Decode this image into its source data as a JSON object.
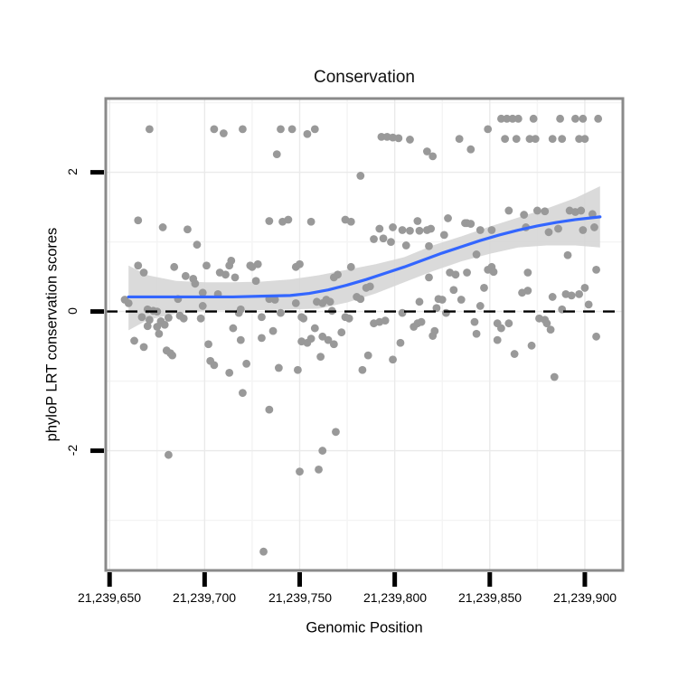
{
  "title": "Conservation",
  "colors": {
    "point": "#999999",
    "smooth_line": "#3366FF",
    "ci_band": "#d6d6d6",
    "reference_line": "#000000",
    "panel_border": "#8a8a8a",
    "grid_major": "#eaeaea",
    "grid_minor": "#f4f4f4",
    "tick_mark": "#000000",
    "text": "#000000",
    "background": "#ffffff"
  },
  "chart_data": {
    "type": "scatter",
    "title": "Conservation",
    "xlabel": "Genomic Position",
    "ylabel": "phyloP LRT conservation scores",
    "xlim": [
      21239648,
      21239920
    ],
    "ylim": [
      -3.72,
      3.06
    ],
    "x_ticks": [
      21239650,
      21239700,
      21239750,
      21239800,
      21239850,
      21239900
    ],
    "x_tick_labels": [
      "21,239,650",
      "21,239,700",
      "21,239,750",
      "21,239,800",
      "21,239,850",
      "21,239,900"
    ],
    "y_ticks": [
      2,
      0,
      -2
    ],
    "y_tick_labels": [
      "2",
      "0",
      "-2"
    ],
    "grid": {
      "v_major": [
        21239650,
        21239700,
        21239750,
        21239800,
        21239850,
        21239900
      ],
      "v_minor": [
        21239675,
        21239725,
        21239775,
        21239825,
        21239875
      ],
      "h_major": [
        -2,
        0,
        2
      ],
      "h_minor": [
        -3,
        -1,
        1,
        3
      ]
    },
    "reference_line_y": 0,
    "smooth_line": [
      [
        21239660,
        0.21
      ],
      [
        21239670,
        0.21
      ],
      [
        21239685,
        0.21
      ],
      [
        21239700,
        0.21
      ],
      [
        21239715,
        0.21
      ],
      [
        21239730,
        0.22
      ],
      [
        21239745,
        0.23
      ],
      [
        21239755,
        0.26
      ],
      [
        21239765,
        0.31
      ],
      [
        21239775,
        0.38
      ],
      [
        21239785,
        0.46
      ],
      [
        21239795,
        0.55
      ],
      [
        21239805,
        0.64
      ],
      [
        21239815,
        0.74
      ],
      [
        21239825,
        0.84
      ],
      [
        21239835,
        0.93
      ],
      [
        21239845,
        1.02
      ],
      [
        21239855,
        1.1
      ],
      [
        21239865,
        1.17
      ],
      [
        21239875,
        1.23
      ],
      [
        21239885,
        1.28
      ],
      [
        21239895,
        1.32
      ],
      [
        21239908,
        1.36
      ]
    ],
    "ci_band": {
      "x": [
        21239660,
        21239670,
        21239685,
        21239700,
        21239715,
        21239730,
        21239745,
        21239760,
        21239775,
        21239790,
        21239805,
        21239820,
        21239835,
        21239850,
        21239865,
        21239880,
        21239895,
        21239908
      ],
      "upper": [
        0.66,
        0.52,
        0.44,
        0.42,
        0.42,
        0.43,
        0.46,
        0.52,
        0.6,
        0.68,
        0.78,
        0.95,
        1.08,
        1.22,
        1.35,
        1.48,
        1.63,
        1.8
      ],
      "lower": [
        -0.27,
        -0.12,
        -0.03,
        0.01,
        0.02,
        0.02,
        0.03,
        0.04,
        0.13,
        0.26,
        0.42,
        0.58,
        0.72,
        0.83,
        0.92,
        0.95,
        0.95,
        0.92
      ]
    },
    "points": [
      [
        21239671,
        2.62
      ],
      [
        21239705,
        2.62
      ],
      [
        21239710,
        2.56
      ],
      [
        21239720,
        2.62
      ],
      [
        21239740,
        2.62
      ],
      [
        21239738,
        2.26
      ],
      [
        21239665,
        1.31
      ],
      [
        21239678,
        1.21
      ],
      [
        21239691,
        1.18
      ],
      [
        21239696,
        0.96
      ],
      [
        21239734,
        1.3
      ],
      [
        21239741,
        1.29
      ],
      [
        21239714,
        0.73
      ],
      [
        21239746,
        2.62
      ],
      [
        21239754,
        2.55
      ],
      [
        21239758,
        2.62
      ],
      [
        21239793,
        2.51
      ],
      [
        21239796,
        2.51
      ],
      [
        21239799,
        2.5
      ],
      [
        21239802,
        2.49
      ],
      [
        21239808,
        2.47
      ],
      [
        21239817,
        2.3
      ],
      [
        21239820,
        2.23
      ],
      [
        21239782,
        1.95
      ],
      [
        21239744,
        1.32
      ],
      [
        21239756,
        1.29
      ],
      [
        21239774,
        1.32
      ],
      [
        21239777,
        1.29
      ],
      [
        21239792,
        1.19
      ],
      [
        21239799,
        1.21
      ],
      [
        21239804,
        1.17
      ],
      [
        21239808,
        1.16
      ],
      [
        21239812,
        1.3
      ],
      [
        21239813,
        1.16
      ],
      [
        21239817,
        1.17
      ],
      [
        21239819,
        1.19
      ],
      [
        21239828,
        1.34
      ],
      [
        21239837,
        1.27
      ],
      [
        21239789,
        1.04
      ],
      [
        21239794,
        1.05
      ],
      [
        21239798,
        1.0
      ],
      [
        21239806,
        0.95
      ],
      [
        21239818,
        0.94
      ],
      [
        21239826,
        1.1
      ],
      [
        21239856,
        2.77
      ],
      [
        21239859,
        2.77
      ],
      [
        21239862,
        2.77
      ],
      [
        21239865,
        2.77
      ],
      [
        21239873,
        2.77
      ],
      [
        21239887,
        2.77
      ],
      [
        21239895,
        2.77
      ],
      [
        21239899,
        2.77
      ],
      [
        21239907,
        2.77
      ],
      [
        21239858,
        2.48
      ],
      [
        21239864,
        2.48
      ],
      [
        21239871,
        2.48
      ],
      [
        21239874,
        2.48
      ],
      [
        21239883,
        2.48
      ],
      [
        21239888,
        2.48
      ],
      [
        21239897,
        2.48
      ],
      [
        21239900,
        2.48
      ],
      [
        21239849,
        2.62
      ],
      [
        21239840,
        2.33
      ],
      [
        21239834,
        2.48
      ],
      [
        21239838,
        1.27
      ],
      [
        21239840,
        1.26
      ],
      [
        21239860,
        1.45
      ],
      [
        21239868,
        1.39
      ],
      [
        21239875,
        1.45
      ],
      [
        21239879,
        1.44
      ],
      [
        21239892,
        1.45
      ],
      [
        21239895,
        1.43
      ],
      [
        21239898,
        1.45
      ],
      [
        21239904,
        1.4
      ],
      [
        21239845,
        1.17
      ],
      [
        21239851,
        1.17
      ],
      [
        21239869,
        1.21
      ],
      [
        21239881,
        1.14
      ],
      [
        21239886,
        1.19
      ],
      [
        21239899,
        1.17
      ],
      [
        21239905,
        1.21
      ],
      [
        21239843,
        0.82
      ],
      [
        21239891,
        0.81
      ],
      [
        21239665,
        0.66
      ],
      [
        21239668,
        0.56
      ],
      [
        21239684,
        0.64
      ],
      [
        21239690,
        0.51
      ],
      [
        21239694,
        0.47
      ],
      [
        21239695,
        0.4
      ],
      [
        21239701,
        0.66
      ],
      [
        21239708,
        0.56
      ],
      [
        21239711,
        0.53
      ],
      [
        21239713,
        0.66
      ],
      [
        21239716,
        0.49
      ],
      [
        21239724,
        0.66
      ],
      [
        21239725,
        0.64
      ],
      [
        21239728,
        0.68
      ],
      [
        21239727,
        0.44
      ],
      [
        21239699,
        0.27
      ],
      [
        21239707,
        0.25
      ],
      [
        21239686,
        0.18
      ],
      [
        21239658,
        0.17
      ],
      [
        21239660,
        0.12
      ],
      [
        21239670,
        0.03
      ],
      [
        21239673,
        0.01
      ],
      [
        21239675,
        0.0
      ],
      [
        21239667,
        -0.08
      ],
      [
        21239671,
        -0.12
      ],
      [
        21239677,
        -0.14
      ],
      [
        21239681,
        -0.09
      ],
      [
        21239687,
        -0.06
      ],
      [
        21239689,
        -0.1
      ],
      [
        21239698,
        -0.1
      ],
      [
        21239699,
        0.08
      ],
      [
        21239718,
        -0.02
      ],
      [
        21239719,
        0.03
      ],
      [
        21239730,
        -0.08
      ],
      [
        21239734,
        0.18
      ],
      [
        21239737,
        0.17
      ],
      [
        21239740,
        -0.02
      ],
      [
        21239670,
        -0.21
      ],
      [
        21239675,
        -0.22
      ],
      [
        21239679,
        -0.19
      ],
      [
        21239676,
        -0.32
      ],
      [
        21239663,
        -0.42
      ],
      [
        21239668,
        -0.51
      ],
      [
        21239680,
        -0.56
      ],
      [
        21239682,
        -0.6
      ],
      [
        21239683,
        -0.63
      ],
      [
        21239702,
        -0.47
      ],
      [
        21239703,
        -0.71
      ],
      [
        21239705,
        -0.77
      ],
      [
        21239713,
        -0.88
      ],
      [
        21239715,
        -0.24
      ],
      [
        21239719,
        -0.41
      ],
      [
        21239722,
        -0.75
      ],
      [
        21239730,
        -0.38
      ],
      [
        21239736,
        -0.28
      ],
      [
        21239739,
        -0.81
      ],
      [
        21239720,
        -1.17
      ],
      [
        21239734,
        -1.41
      ],
      [
        21239748,
        0.64
      ],
      [
        21239750,
        0.68
      ],
      [
        21239768,
        0.49
      ],
      [
        21239770,
        0.53
      ],
      [
        21239777,
        0.64
      ],
      [
        21239785,
        0.34
      ],
      [
        21239787,
        0.36
      ],
      [
        21239780,
        0.21
      ],
      [
        21239782,
        0.18
      ],
      [
        21239748,
        0.12
      ],
      [
        21239759,
        0.14
      ],
      [
        21239762,
        0.12
      ],
      [
        21239764,
        0.17
      ],
      [
        21239766,
        0.14
      ],
      [
        21239767,
        0.01
      ],
      [
        21239751,
        -0.08
      ],
      [
        21239774,
        -0.08
      ],
      [
        21239776,
        -0.1
      ],
      [
        21239789,
        -0.17
      ],
      [
        21239792,
        -0.15
      ],
      [
        21239795,
        -0.13
      ],
      [
        21239804,
        -0.02
      ],
      [
        21239810,
        -0.22
      ],
      [
        21239812,
        -0.17
      ],
      [
        21239814,
        -0.15
      ],
      [
        21239813,
        0.14
      ],
      [
        21239818,
        0.49
      ],
      [
        21239822,
        0.05
      ],
      [
        21239823,
        0.18
      ],
      [
        21239825,
        0.17
      ],
      [
        21239827,
        -0.02
      ],
      [
        21239829,
        0.56
      ],
      [
        21239831,
        0.31
      ],
      [
        21239832,
        0.53
      ],
      [
        21239835,
        0.17
      ],
      [
        21239752,
        -0.1
      ],
      [
        21239758,
        -0.24
      ],
      [
        21239751,
        -0.43
      ],
      [
        21239754,
        -0.45
      ],
      [
        21239756,
        -0.39
      ],
      [
        21239762,
        -0.36
      ],
      [
        21239765,
        -0.41
      ],
      [
        21239768,
        -0.47
      ],
      [
        21239772,
        -0.3
      ],
      [
        21239761,
        -0.65
      ],
      [
        21239786,
        -0.63
      ],
      [
        21239783,
        -0.84
      ],
      [
        21239799,
        -0.69
      ],
      [
        21239803,
        -0.45
      ],
      [
        21239749,
        -0.84
      ],
      [
        21239821,
        -0.28
      ],
      [
        21239820,
        -0.35
      ],
      [
        21239838,
        0.56
      ],
      [
        21239849,
        0.6
      ],
      [
        21239851,
        0.64
      ],
      [
        21239852,
        0.57
      ],
      [
        21239870,
        0.56
      ],
      [
        21239906,
        0.6
      ],
      [
        21239847,
        0.34
      ],
      [
        21239867,
        0.27
      ],
      [
        21239870,
        0.3
      ],
      [
        21239883,
        0.21
      ],
      [
        21239890,
        0.25
      ],
      [
        21239893,
        0.23
      ],
      [
        21239897,
        0.25
      ],
      [
        21239900,
        0.34
      ],
      [
        21239845,
        0.08
      ],
      [
        21239888,
        0.03
      ],
      [
        21239902,
        0.1
      ],
      [
        21239842,
        -0.15
      ],
      [
        21239854,
        -0.17
      ],
      [
        21239856,
        -0.24
      ],
      [
        21239860,
        -0.17
      ],
      [
        21239876,
        -0.1
      ],
      [
        21239879,
        -0.12
      ],
      [
        21239880,
        -0.17
      ],
      [
        21239882,
        -0.26
      ],
      [
        21239843,
        -0.32
      ],
      [
        21239854,
        -0.41
      ],
      [
        21239872,
        -0.49
      ],
      [
        21239863,
        -0.61
      ],
      [
        21239906,
        -0.36
      ],
      [
        21239884,
        -0.94
      ],
      [
        21239681,
        -2.06
      ],
      [
        21239769,
        -1.73
      ],
      [
        21239762,
        -2.0
      ],
      [
        21239750,
        -2.3
      ],
      [
        21239760,
        -2.27
      ],
      [
        21239731,
        -3.45
      ]
    ]
  }
}
